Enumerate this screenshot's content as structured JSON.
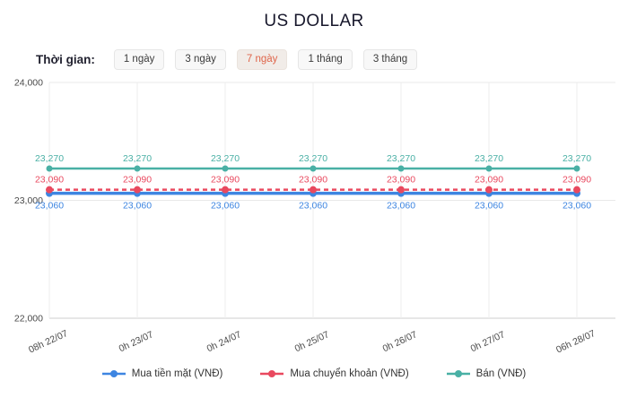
{
  "header": {
    "title": "US DOLLAR"
  },
  "controls": {
    "label": "Thời gian:",
    "active_text_color": "#df654a",
    "active_bg_color": "#f1ece8",
    "buttons": [
      {
        "label": "1 ngày",
        "active": false
      },
      {
        "label": "3 ngày",
        "active": false
      },
      {
        "label": "7 ngày",
        "active": true
      },
      {
        "label": "1 tháng",
        "active": false
      },
      {
        "label": "3 tháng",
        "active": false
      }
    ]
  },
  "chart_data": {
    "type": "line",
    "title": "US DOLLAR",
    "x": [
      "08h 22/07",
      "0h 23/07",
      "0h 24/07",
      "0h 25/07",
      "0h 26/07",
      "0h 27/07",
      "06h 28/07"
    ],
    "series": [
      {
        "name": "Mua tiền mặt (VNĐ)",
        "color": "#3d85e1",
        "dash": "solid",
        "line_width": 3.5,
        "marker_radius": 4,
        "label_position": "below",
        "values": [
          23060,
          23060,
          23060,
          23060,
          23060,
          23060,
          23060
        ]
      },
      {
        "name": "Mua chuyển khoản (VNĐ)",
        "color": "#e9495f",
        "dash": "dashed",
        "line_width": 2.5,
        "marker_radius": 4,
        "label_position": "above",
        "values": [
          23090,
          23090,
          23090,
          23090,
          23090,
          23090,
          23090
        ]
      },
      {
        "name": "Bán (VNĐ)",
        "color": "#49b0a5",
        "dash": "solid",
        "line_width": 2.5,
        "marker_radius": 3.5,
        "label_position": "above",
        "values": [
          23270,
          23270,
          23270,
          23270,
          23270,
          23270,
          23270
        ]
      }
    ],
    "ylim": [
      22000,
      24000
    ],
    "yticks": [
      22000,
      23000,
      24000
    ],
    "grid": true,
    "data_labels": true,
    "legend_position": "bottom"
  }
}
